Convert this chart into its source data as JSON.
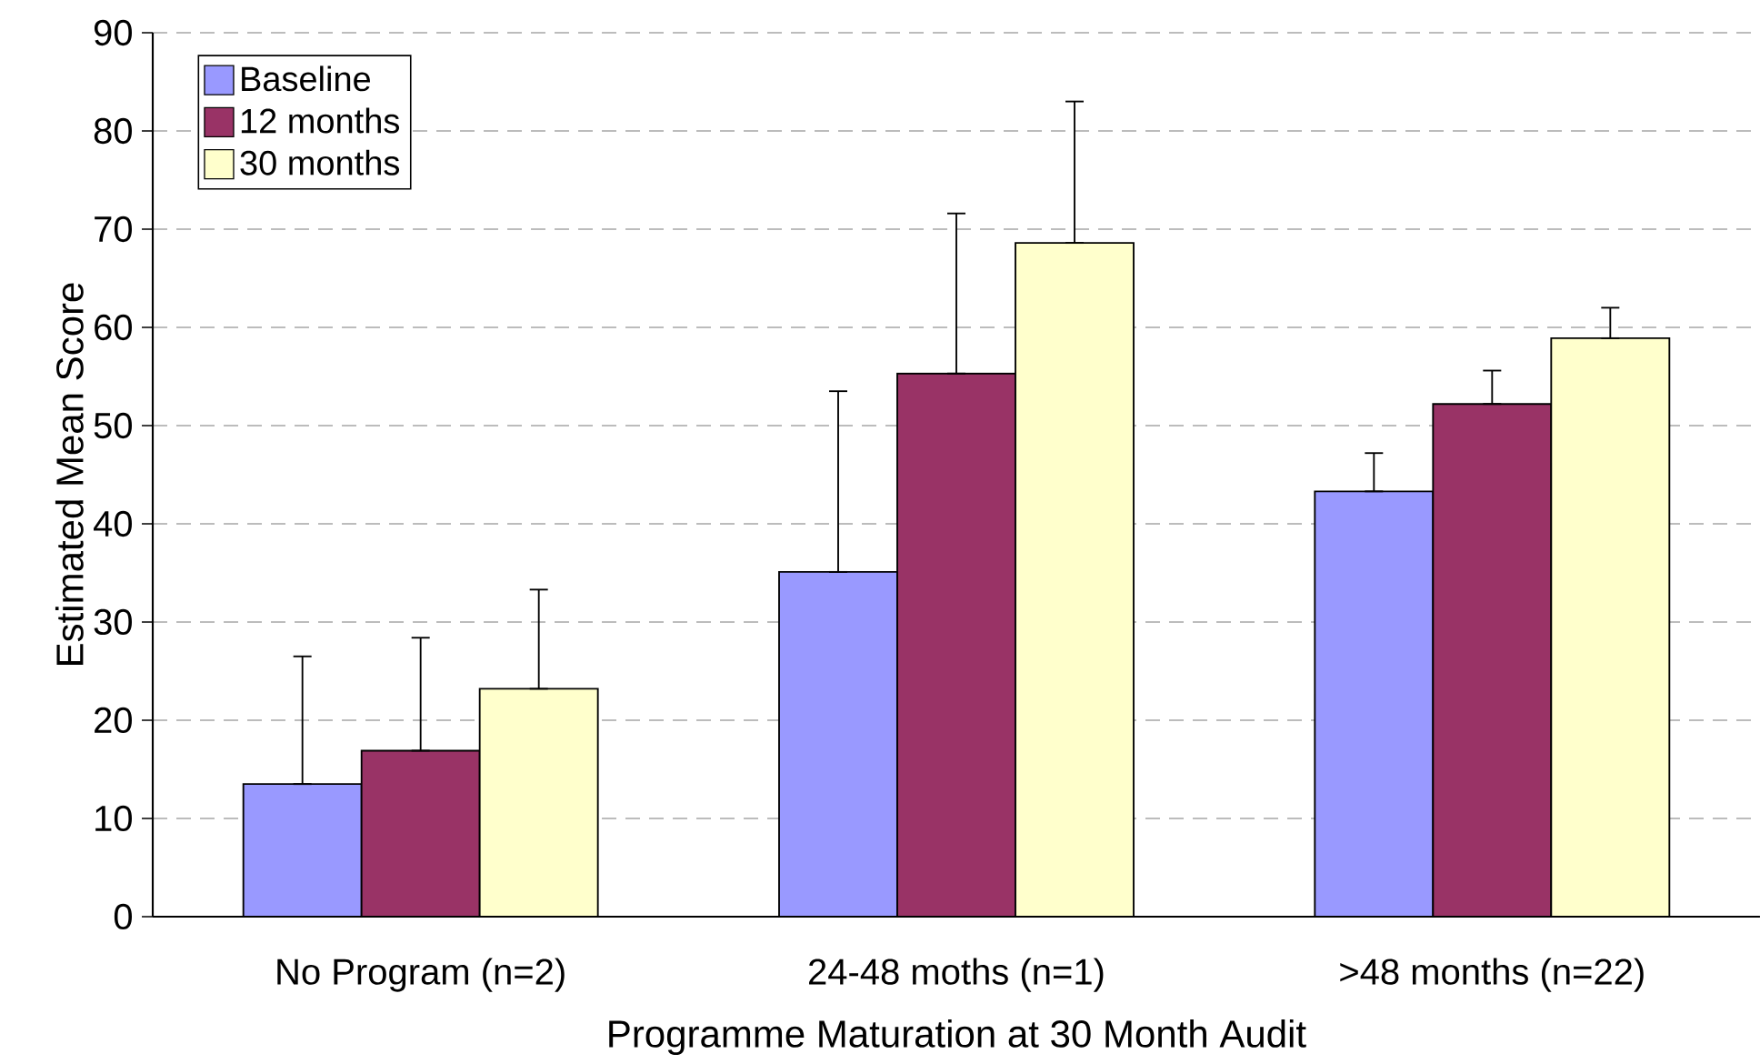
{
  "chart_data": {
    "type": "bar",
    "xlabel": "Programme Maturation at 30 Month Audit",
    "ylabel": "Estimated Mean Score",
    "categories": [
      "No Program (n=2)",
      "24-48 moths (n=1)",
      ">48 months (n=22)"
    ],
    "series": [
      {
        "name": "Baseline",
        "color": "#9999ff",
        "values": [
          13.5,
          35.1,
          43.3
        ],
        "errors": [
          [
            13.5,
            26.5
          ],
          [
            35.1,
            53.5
          ],
          [
            43.3,
            47.2
          ]
        ]
      },
      {
        "name": "12 months",
        "color": "#993366",
        "values": [
          16.9,
          55.3,
          52.2
        ],
        "errors": [
          [
            16.9,
            28.4
          ],
          [
            55.3,
            71.6
          ],
          [
            52.2,
            55.6
          ]
        ]
      },
      {
        "name": "30 months",
        "color": "#ffffcc",
        "values": [
          23.2,
          68.6,
          58.9
        ],
        "errors": [
          [
            23.2,
            33.3
          ],
          [
            68.6,
            83.0
          ],
          [
            58.9,
            62.0
          ]
        ]
      }
    ],
    "ylim": [
      0,
      90
    ],
    "yticks": [
      0,
      10,
      20,
      30,
      40,
      50,
      60,
      70,
      80,
      90
    ],
    "grid": "y",
    "legend": "top left"
  }
}
